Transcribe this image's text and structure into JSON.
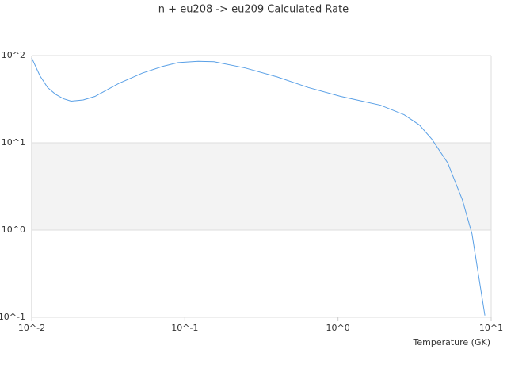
{
  "chart_data": {
    "type": "line",
    "title": "n + eu208 -> eu209 Calculated Rate",
    "x_label": "Temperature (GK)",
    "log_x": true,
    "log_y": true,
    "color": "#5aa0e6",
    "band_color": "#f3f3f3",
    "x": [
      0.01,
      0.0113,
      0.0127,
      0.0143,
      0.0161,
      0.0181,
      0.0217,
      0.0259,
      0.0371,
      0.0529,
      0.0714,
      0.0904,
      0.122,
      0.155,
      0.248,
      0.4,
      0.64,
      1.04,
      1.89,
      2.7,
      3.4,
      4.1,
      5.2,
      6.5,
      7.5,
      9.1
    ],
    "values": [
      94,
      59,
      43,
      36,
      32,
      30,
      31,
      34,
      48,
      63,
      75,
      83,
      86,
      85,
      72,
      57,
      43,
      34,
      27,
      21,
      16,
      11,
      5.9,
      2.2,
      0.9,
      0.105
    ],
    "xlim": [
      0.01,
      10
    ],
    "ylim": [
      0.1,
      100
    ],
    "xticks": [
      {
        "value": 0.01,
        "label": "10^-2"
      },
      {
        "value": 0.1,
        "label": "10^-1"
      },
      {
        "value": 1,
        "label": "10^0"
      },
      {
        "value": 10,
        "label": "10^1"
      }
    ],
    "yticks": [
      {
        "value": 0.1,
        "label": "10^-1"
      },
      {
        "value": 1,
        "label": "10^0"
      },
      {
        "value": 10,
        "label": "10^1"
      },
      {
        "value": 100,
        "label": "10^2"
      }
    ]
  }
}
